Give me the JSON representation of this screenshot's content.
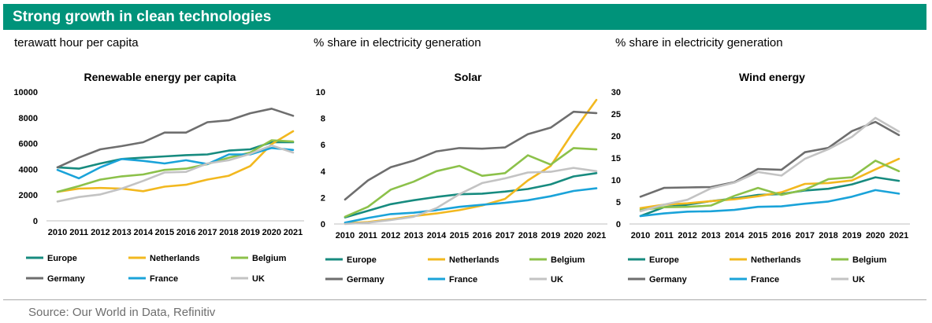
{
  "banner": {
    "title": "Strong growth in clean technologies"
  },
  "subtitles": [
    "terawatt hour per capita",
    "% share  in electricity generation",
    "% share  in electricity generation"
  ],
  "source": "Source: Our World in Data, Refinitiv",
  "colors": {
    "banner": "#00937a"
  },
  "chart_data": [
    {
      "type": "line",
      "title": "Renewable energy per capita",
      "xlabel": "",
      "ylabel": "",
      "x": [
        2010,
        2011,
        2012,
        2013,
        2014,
        2015,
        2016,
        2017,
        2018,
        2019,
        2020,
        2021
      ],
      "ylim": [
        0,
        10000
      ],
      "yticks": [
        0,
        2000,
        4000,
        6000,
        8000,
        10000
      ],
      "legend_position": "bottom",
      "series": [
        {
          "name": "Europe",
          "color": "#178b7f",
          "values": [
            4150,
            4050,
            4450,
            4800,
            4900,
            5000,
            5100,
            5150,
            5450,
            5550,
            6100,
            6100
          ]
        },
        {
          "name": "Netherlands",
          "color": "#f2b81f",
          "values": [
            2250,
            2500,
            2550,
            2500,
            2300,
            2650,
            2800,
            3200,
            3500,
            4250,
            5950,
            6950
          ]
        },
        {
          "name": "Belgium",
          "color": "#8cc14a",
          "values": [
            2250,
            2700,
            3200,
            3450,
            3600,
            3950,
            4050,
            4400,
            4900,
            5300,
            6250,
            6150
          ]
        },
        {
          "name": "Germany",
          "color": "#6e6e6e",
          "values": [
            4150,
            4900,
            5550,
            5800,
            6100,
            6850,
            6850,
            7650,
            7800,
            8350,
            8700,
            8150
          ]
        },
        {
          "name": "France",
          "color": "#1aa3d9",
          "values": [
            3950,
            3300,
            4150,
            4800,
            4650,
            4450,
            4700,
            4400,
            5150,
            5150,
            5650,
            5500
          ]
        },
        {
          "name": "UK",
          "color": "#c3c3c3",
          "values": [
            1500,
            1850,
            2050,
            2500,
            3100,
            3750,
            3800,
            4450,
            4700,
            5200,
            5850,
            5300
          ]
        }
      ]
    },
    {
      "type": "line",
      "title": "Solar",
      "xlabel": "",
      "ylabel": "",
      "x": [
        2010,
        2011,
        2012,
        2013,
        2014,
        2015,
        2016,
        2017,
        2018,
        2019,
        2020,
        2021
      ],
      "ylim": [
        0,
        10
      ],
      "yticks": [
        0,
        2,
        4,
        6,
        8,
        10
      ],
      "legend_position": "bottom",
      "series": [
        {
          "name": "Europe",
          "color": "#178b7f",
          "values": [
            0.5,
            1.0,
            1.5,
            1.8,
            2.05,
            2.25,
            2.3,
            2.45,
            2.65,
            3.0,
            3.6,
            3.85
          ]
        },
        {
          "name": "Netherlands",
          "color": "#f2b81f",
          "values": [
            0.05,
            0.15,
            0.35,
            0.6,
            0.8,
            1.05,
            1.4,
            1.9,
            3.3,
            4.4,
            7.0,
            9.4
          ]
        },
        {
          "name": "Belgium",
          "color": "#8cc14a",
          "values": [
            0.55,
            1.3,
            2.6,
            3.2,
            4.0,
            4.4,
            3.65,
            3.85,
            5.2,
            4.5,
            5.75,
            5.65
          ]
        },
        {
          "name": "Germany",
          "color": "#6e6e6e",
          "values": [
            1.85,
            3.3,
            4.3,
            4.8,
            5.5,
            5.75,
            5.7,
            5.8,
            6.8,
            7.3,
            8.5,
            8.4
          ]
        },
        {
          "name": "France",
          "color": "#1aa3d9",
          "values": [
            0.1,
            0.45,
            0.75,
            0.85,
            1.05,
            1.3,
            1.45,
            1.6,
            1.8,
            2.1,
            2.5,
            2.7
          ]
        },
        {
          "name": "UK",
          "color": "#c3c3c3",
          "values": [
            0.0,
            0.1,
            0.3,
            0.55,
            1.2,
            2.25,
            3.1,
            3.45,
            3.9,
            3.95,
            4.25,
            4.0
          ]
        }
      ]
    },
    {
      "type": "line",
      "title": "Wind energy",
      "xlabel": "",
      "ylabel": "",
      "x": [
        2010,
        2011,
        2012,
        2013,
        2014,
        2015,
        2016,
        2017,
        2018,
        2019,
        2020,
        2021
      ],
      "ylim": [
        0,
        30
      ],
      "yticks": [
        0,
        5,
        10,
        15,
        20,
        25,
        30
      ],
      "legend_position": "bottom",
      "series": [
        {
          "name": "Europe",
          "color": "#178b7f",
          "values": [
            1.8,
            3.8,
            4.4,
            5.2,
            5.8,
            6.6,
            6.8,
            7.6,
            8.0,
            9.0,
            10.6,
            9.8
          ]
        },
        {
          "name": "Netherlands",
          "color": "#f2b81f",
          "values": [
            3.6,
            4.4,
            4.7,
            5.2,
            5.6,
            6.3,
            7.2,
            9.1,
            9.3,
            9.9,
            12.4,
            14.8
          ]
        },
        {
          "name": "Belgium",
          "color": "#8cc14a",
          "values": [
            3.2,
            3.8,
            3.9,
            4.2,
            6.4,
            8.2,
            6.6,
            7.8,
            10.2,
            10.6,
            14.4,
            12.0
          ]
        },
        {
          "name": "Germany",
          "color": "#6e6e6e",
          "values": [
            6.2,
            8.2,
            8.3,
            8.4,
            9.5,
            12.5,
            12.3,
            16.3,
            17.3,
            21.1,
            23.2,
            20.2
          ]
        },
        {
          "name": "France",
          "color": "#1aa3d9",
          "values": [
            1.8,
            2.4,
            2.8,
            2.9,
            3.2,
            3.9,
            4.0,
            4.6,
            5.1,
            6.2,
            7.7,
            6.9
          ]
        },
        {
          "name": "UK",
          "color": "#c3c3c3",
          "values": [
            2.9,
            4.4,
            5.5,
            8.1,
            9.4,
            11.8,
            11.0,
            14.8,
            17.0,
            19.8,
            24.1,
            21.0
          ]
        }
      ]
    }
  ]
}
